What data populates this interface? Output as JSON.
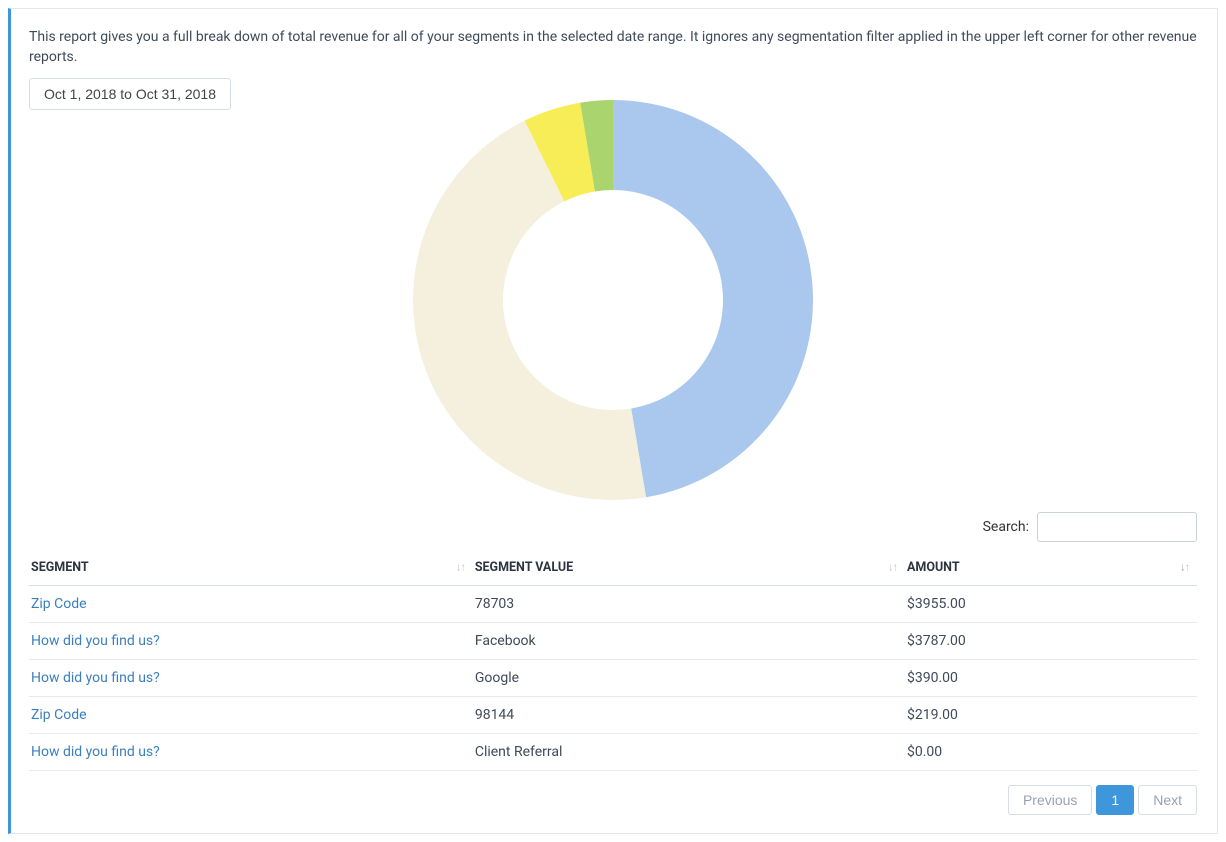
{
  "description": "This report gives you a full break down of total revenue for all of your segments in the selected date range. It ignores any segmentation filter applied in the upper left corner for other revenue reports.",
  "date_range": "Oct 1, 2018 to Oct 31, 2018",
  "chart": {
    "type": "donut",
    "size": 400,
    "inner_radius_ratio": 0.55,
    "background_color": "#ffffff",
    "slices": [
      {
        "label": "Zip Code 78703",
        "value": 3955.0,
        "color": "#aac7ee"
      },
      {
        "label": "Facebook",
        "value": 3787.0,
        "color": "#f5f0dd"
      },
      {
        "label": "Google",
        "value": 390.0,
        "color": "#f7ee57"
      },
      {
        "label": "Zip Code 98144",
        "value": 219.0,
        "color": "#a9d46e"
      }
    ]
  },
  "search": {
    "label": "Search:",
    "value": ""
  },
  "table": {
    "columns": [
      {
        "label": "SEGMENT",
        "width": "38%",
        "sort": "none"
      },
      {
        "label": "SEGMENT VALUE",
        "width": "37%",
        "sort": "none"
      },
      {
        "label": "AMOUNT",
        "width": "25%",
        "sort": "desc"
      }
    ],
    "rows": [
      {
        "segment": "Zip Code",
        "value": "78703",
        "amount": "$3955.00"
      },
      {
        "segment": "How did you find us?",
        "value": "Facebook",
        "amount": "$3787.00"
      },
      {
        "segment": "How did you find us?",
        "value": "Google",
        "amount": "$390.00"
      },
      {
        "segment": "Zip Code",
        "value": "98144",
        "amount": "$219.00"
      },
      {
        "segment": "How did you find us?",
        "value": "Client Referral",
        "amount": "$0.00"
      }
    ]
  },
  "pagination": {
    "previous_label": "Previous",
    "current_page": "1",
    "next_label": "Next"
  }
}
